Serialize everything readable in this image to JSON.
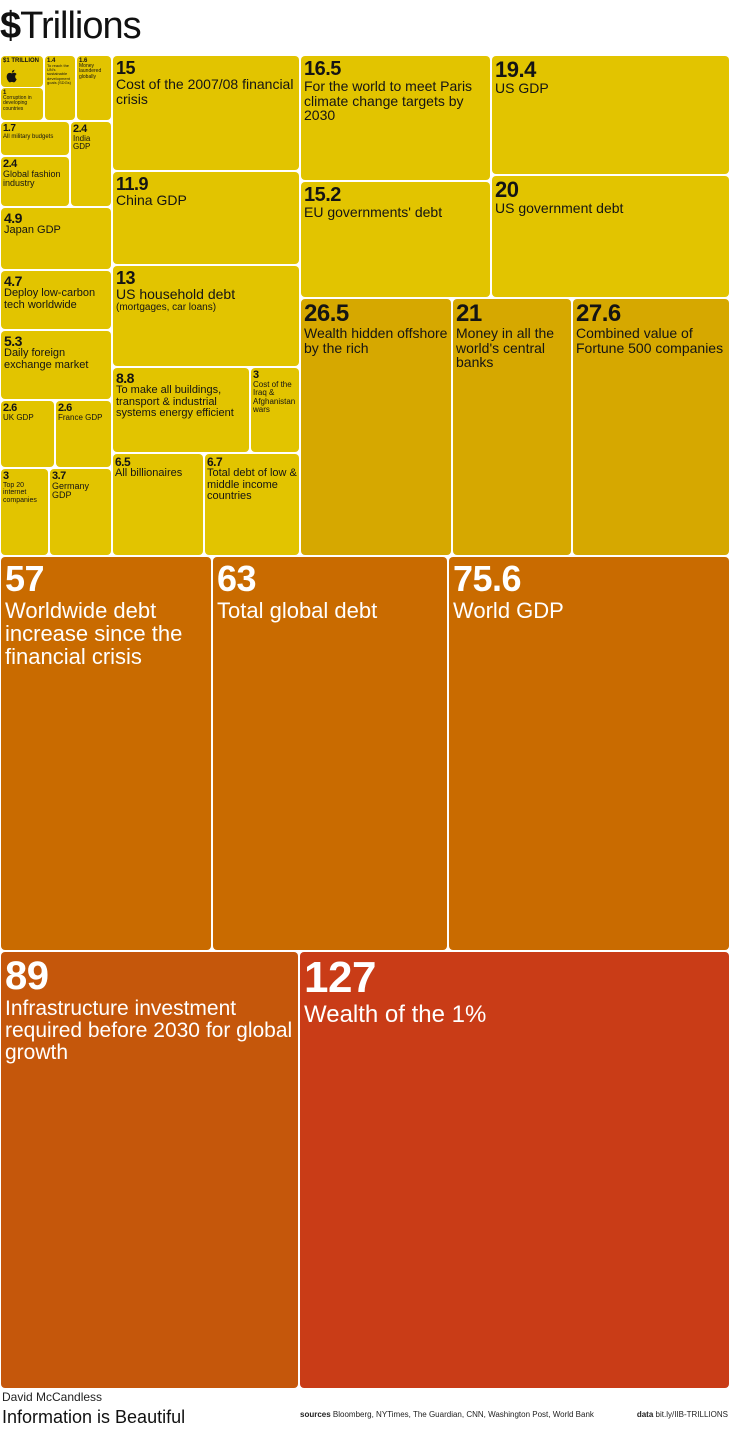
{
  "title": {
    "symbol": "$",
    "word": "Trillions"
  },
  "footer": {
    "author": "David McCandless",
    "brand": "Information is Beautiful",
    "sources_label": "sources",
    "sources_text": "Bloomberg, NYTimes, The Guardian, CNN, Washington Post, World Bank",
    "data_label": "data",
    "data_text": "bit.ly/IIB-TRILLIONS"
  },
  "icons": {
    "apple": "apple-logo-icon"
  },
  "colors": {
    "yellow": "#e2c400",
    "gold": "#d6a800",
    "orange": "#c96b00",
    "orange_dark": "#c5570b",
    "red": "#c93c17"
  },
  "chart_data": {
    "type": "treemap",
    "title": "$Trillions",
    "unit": "$ trillions",
    "items": [
      {
        "value": "1",
        "label": "Corruption in developing countries"
      },
      {
        "value": "$1 TRILLION",
        "label": ""
      },
      {
        "value": "1.4",
        "label": "To reach the UN's sustainable development goals (SDGs)"
      },
      {
        "value": "1.6",
        "label": "Money laundered globally"
      },
      {
        "value": "1.7",
        "label": "All military budgets"
      },
      {
        "value": "2.4",
        "label": "India GDP"
      },
      {
        "value": "2.4",
        "label": "Global fashion industry"
      },
      {
        "value": "4.9",
        "label": "Japan GDP"
      },
      {
        "value": "4.7",
        "label": "Deploy low-carbon tech worldwide"
      },
      {
        "value": "5.3",
        "label": "Daily foreign exchange market"
      },
      {
        "value": "2.6",
        "label": "UK GDP"
      },
      {
        "value": "2.6",
        "label": "France GDP"
      },
      {
        "value": "3",
        "label": "Top 20 internet companies"
      },
      {
        "value": "3.7",
        "label": "Germany GDP"
      },
      {
        "value": "15",
        "label": "Cost of the 2007/08 financial crisis"
      },
      {
        "value": "11.9",
        "label": "China GDP"
      },
      {
        "value": "13",
        "label": "US household debt",
        "sublabel": "(mortgages, car loans)"
      },
      {
        "value": "8.8",
        "label": "To make all buildings, transport & industrial systems energy efficient"
      },
      {
        "value": "3",
        "label": "Cost of the Iraq & Afghanistan wars"
      },
      {
        "value": "6.5",
        "label": "All billionaires"
      },
      {
        "value": "6.7",
        "label": "Total debt of low & middle income countries"
      },
      {
        "value": "16.5",
        "label": "For the world to meet Paris climate change targets by 2030"
      },
      {
        "value": "19.4",
        "label": "US GDP"
      },
      {
        "value": "15.2",
        "label": "EU governments' debt"
      },
      {
        "value": "20",
        "label": "US government debt"
      },
      {
        "value": "26.5",
        "label": "Wealth hidden offshore by the rich"
      },
      {
        "value": "21",
        "label": "Money in all the world's central banks"
      },
      {
        "value": "27.6",
        "label": "Combined value of Fortune 500 companies"
      },
      {
        "value": "57",
        "label": "Worldwide debt increase since the financial crisis"
      },
      {
        "value": "63",
        "label": "Total global debt"
      },
      {
        "value": "75.6",
        "label": "World GDP"
      },
      {
        "value": "89",
        "label": "Infrastructure investment required before 2030 for global growth"
      },
      {
        "value": "127",
        "label": "Wealth of the 1%"
      }
    ]
  }
}
